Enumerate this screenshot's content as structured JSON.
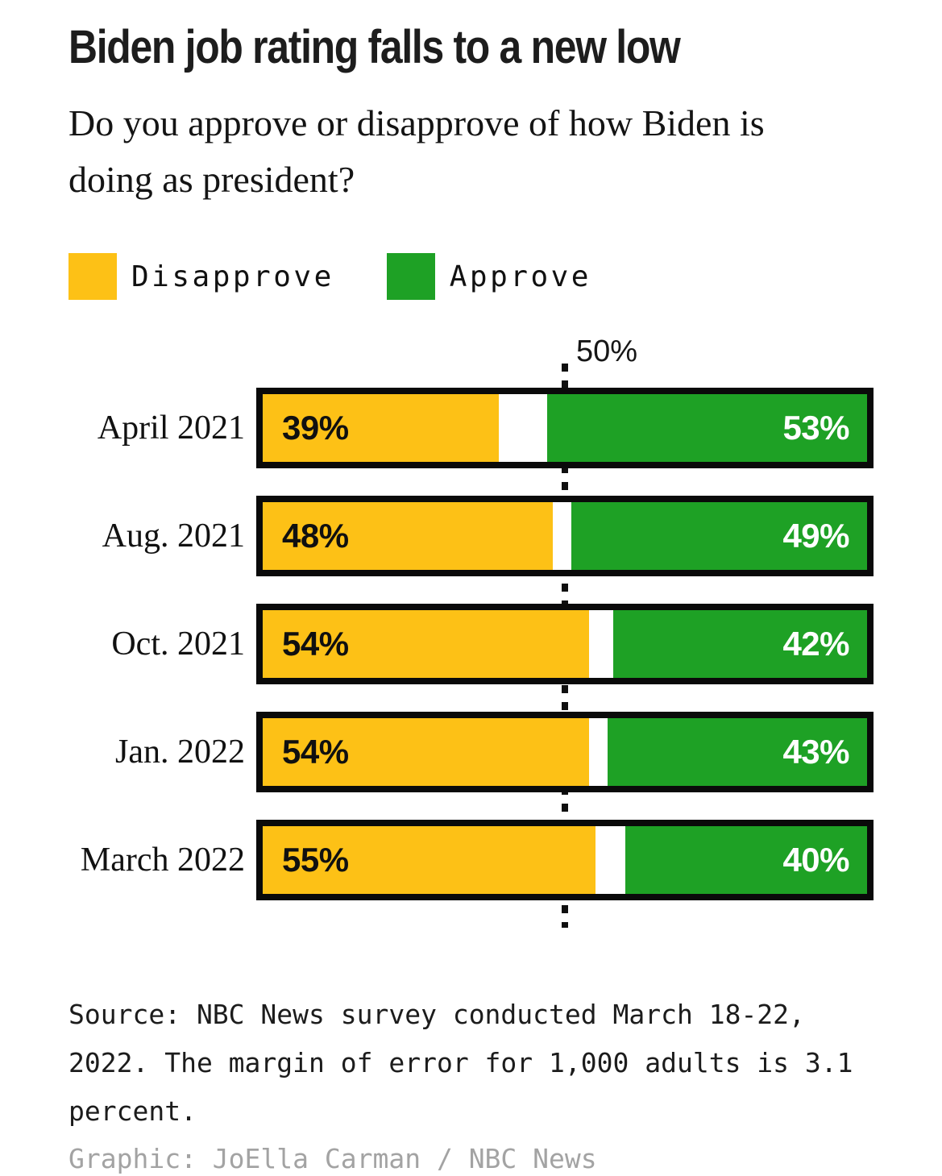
{
  "title": "Biden job rating falls to a new low",
  "subtitle": "Do you approve or disapprove of how Biden is\ndoing as president?",
  "legend": [
    {
      "label": "Disapprove",
      "color": "#FDC116"
    },
    {
      "label": "Approve",
      "color": "#1EA125"
    }
  ],
  "chart_data": {
    "type": "bar",
    "orientation": "horizontal-diverging",
    "categories": [
      "April 2021",
      "Aug. 2021",
      "Oct. 2021",
      "Jan. 2022",
      "March 2022"
    ],
    "series": [
      {
        "name": "Disapprove",
        "color": "#FDC116",
        "values": [
          39,
          48,
          54,
          54,
          55
        ]
      },
      {
        "name": "Approve",
        "color": "#1EA125",
        "values": [
          53,
          49,
          42,
          43,
          40
        ]
      }
    ],
    "value_suffix": "%",
    "xlim": [
      0,
      100
    ],
    "reference_line": {
      "value": 50,
      "label": "50%"
    },
    "bar_border_color": "#0A0A0A",
    "gap_meaning": "unsure/neither",
    "approve_alignment": "right",
    "legend_position": "top"
  },
  "source": "Source: NBC News survey conducted March 18-22,\n2022. The margin of error for 1,000 adults is 3.1\npercent.",
  "credit": "Graphic: JoElla Carman / NBC News"
}
